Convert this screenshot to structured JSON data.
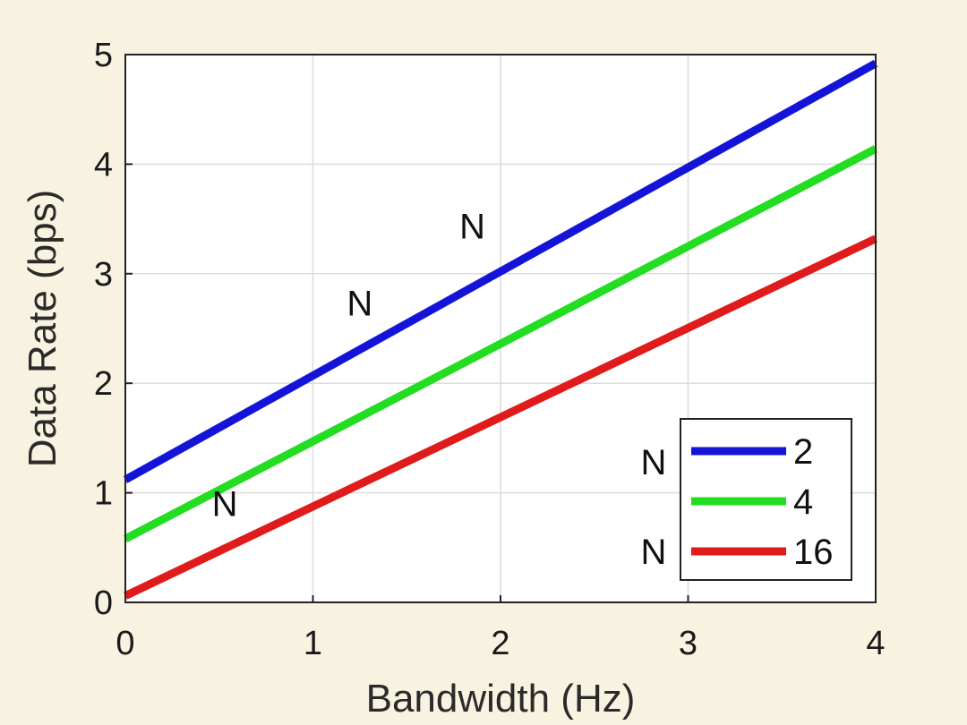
{
  "chart_data": {
    "type": "line",
    "title": "",
    "xlabel": "Bandwidth (Hz)",
    "ylabel": "Data Rate (bps)",
    "xlim": [
      0,
      4
    ],
    "ylim": [
      0,
      5
    ],
    "xticks": [
      "0",
      "1",
      "2",
      "3",
      "4"
    ],
    "yticks": [
      "0",
      "1",
      "2",
      "3",
      "4",
      "5"
    ],
    "grid": true,
    "legend_position": "bottom-right",
    "series": [
      {
        "name": "2",
        "color": "#1414d8",
        "x": [
          0,
          4
        ],
        "y": [
          1.12,
          4.92
        ]
      },
      {
        "name": "4",
        "color": "#22dd22",
        "x": [
          0,
          4
        ],
        "y": [
          0.58,
          4.14
        ]
      },
      {
        "name": "16",
        "color": "#e01b1b",
        "x": [
          0,
          4
        ],
        "y": [
          0.06,
          3.32
        ]
      }
    ],
    "annotations": [
      {
        "text": "N",
        "x": 1.25,
        "y": 2.62
      },
      {
        "text": "N",
        "x": 1.85,
        "y": 3.32
      },
      {
        "text": "N",
        "x": 0.53,
        "y": 0.79
      }
    ],
    "legend_prefix": [
      "N",
      "",
      "N"
    ]
  }
}
